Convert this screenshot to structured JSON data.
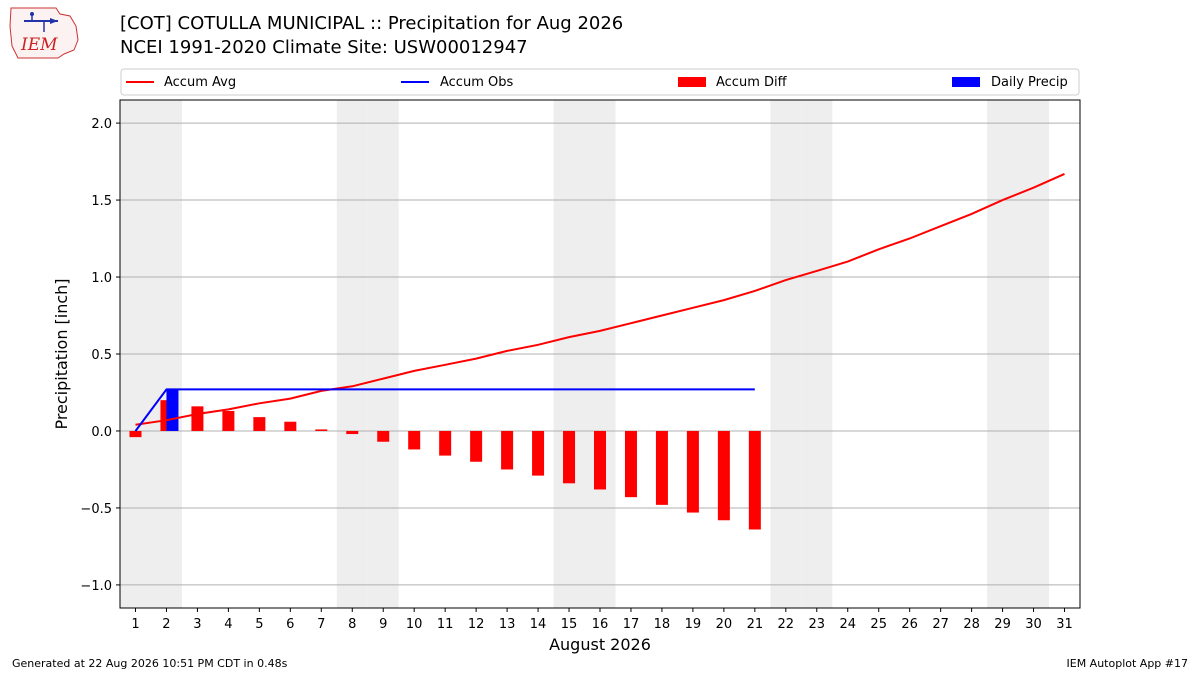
{
  "header": {
    "title_line1": "[COT] COTULLA MUNICIPAL :: Precipitation for Aug 2026",
    "title_line2": "NCEI 1991-2020 Climate Site: USW00012947",
    "logo_text": "IEM"
  },
  "footer": {
    "left": "Generated at 22 Aug 2026 10:51 PM CDT in 0.48s",
    "right": "IEM Autoplot App #17"
  },
  "colors": {
    "accum_avg": "#ff0000",
    "accum_obs": "#0000ff",
    "accum_diff": "#ff0000",
    "daily_precip": "#0000ff",
    "weekend_shade": "#eeeeee",
    "grid": "#b0b0b0"
  },
  "chart_data": {
    "type": "bar",
    "xlabel": "August 2026",
    "ylabel": "Precipitation [inch]",
    "xlim": [
      0.5,
      31.5
    ],
    "ylim": [
      -1.15,
      2.15
    ],
    "yticks": [
      -1.0,
      -0.5,
      0.0,
      0.5,
      1.0,
      1.5,
      2.0
    ],
    "ytick_labels": [
      "−1.0",
      "−0.5",
      "0.0",
      "0.5",
      "1.0",
      "1.5",
      "2.0"
    ],
    "x": [
      1,
      2,
      3,
      4,
      5,
      6,
      7,
      8,
      9,
      10,
      11,
      12,
      13,
      14,
      15,
      16,
      17,
      18,
      19,
      20,
      21,
      22,
      23,
      24,
      25,
      26,
      27,
      28,
      29,
      30,
      31
    ],
    "x_labels": [
      "1",
      "2",
      "3",
      "4",
      "5",
      "6",
      "7",
      "8",
      "9",
      "10",
      "11",
      "12",
      "13",
      "14",
      "15",
      "16",
      "17",
      "18",
      "19",
      "20",
      "21",
      "22",
      "23",
      "24",
      "25",
      "26",
      "27",
      "28",
      "29",
      "30",
      "31"
    ],
    "weekend_days": [
      1,
      2,
      8,
      9,
      15,
      16,
      22,
      23,
      29,
      30
    ],
    "grid": "horizontal",
    "legend": {
      "placement": "top",
      "entries": [
        {
          "label": "Accum Avg",
          "kind": "line",
          "color_key": "accum_avg"
        },
        {
          "label": "Accum Obs",
          "kind": "line",
          "color_key": "accum_obs"
        },
        {
          "label": "Accum Diff",
          "kind": "bar",
          "color_key": "accum_diff"
        },
        {
          "label": "Daily Precip",
          "kind": "bar",
          "color_key": "daily_precip"
        }
      ]
    },
    "series": [
      {
        "name": "Accum Avg",
        "kind": "line",
        "values": [
          0.04,
          0.07,
          0.11,
          0.14,
          0.18,
          0.21,
          0.26,
          0.29,
          0.34,
          0.39,
          0.43,
          0.47,
          0.52,
          0.56,
          0.61,
          0.65,
          0.7,
          0.75,
          0.8,
          0.85,
          0.91,
          0.98,
          1.04,
          1.1,
          1.18,
          1.25,
          1.33,
          1.41,
          1.5,
          1.58,
          1.67
        ]
      },
      {
        "name": "Accum Obs",
        "kind": "line",
        "x": [
          1,
          2,
          3,
          4,
          5,
          6,
          7,
          8,
          9,
          10,
          11,
          12,
          13,
          14,
          15,
          16,
          17,
          18,
          19,
          20,
          21
        ],
        "values": [
          0.0,
          0.27,
          0.27,
          0.27,
          0.27,
          0.27,
          0.27,
          0.27,
          0.27,
          0.27,
          0.27,
          0.27,
          0.27,
          0.27,
          0.27,
          0.27,
          0.27,
          0.27,
          0.27,
          0.27,
          0.27
        ]
      },
      {
        "name": "Accum Diff",
        "kind": "bar",
        "x": [
          1,
          2,
          3,
          4,
          5,
          6,
          7,
          8,
          9,
          10,
          11,
          12,
          13,
          14,
          15,
          16,
          17,
          18,
          19,
          20,
          21
        ],
        "values": [
          -0.04,
          0.2,
          0.16,
          0.13,
          0.09,
          0.06,
          0.01,
          -0.02,
          -0.07,
          -0.12,
          -0.16,
          -0.2,
          -0.25,
          -0.29,
          -0.34,
          -0.38,
          -0.43,
          -0.48,
          -0.53,
          -0.58,
          -0.64
        ]
      },
      {
        "name": "Daily Precip",
        "kind": "bar",
        "x": [
          2
        ],
        "values": [
          0.27
        ]
      }
    ]
  }
}
